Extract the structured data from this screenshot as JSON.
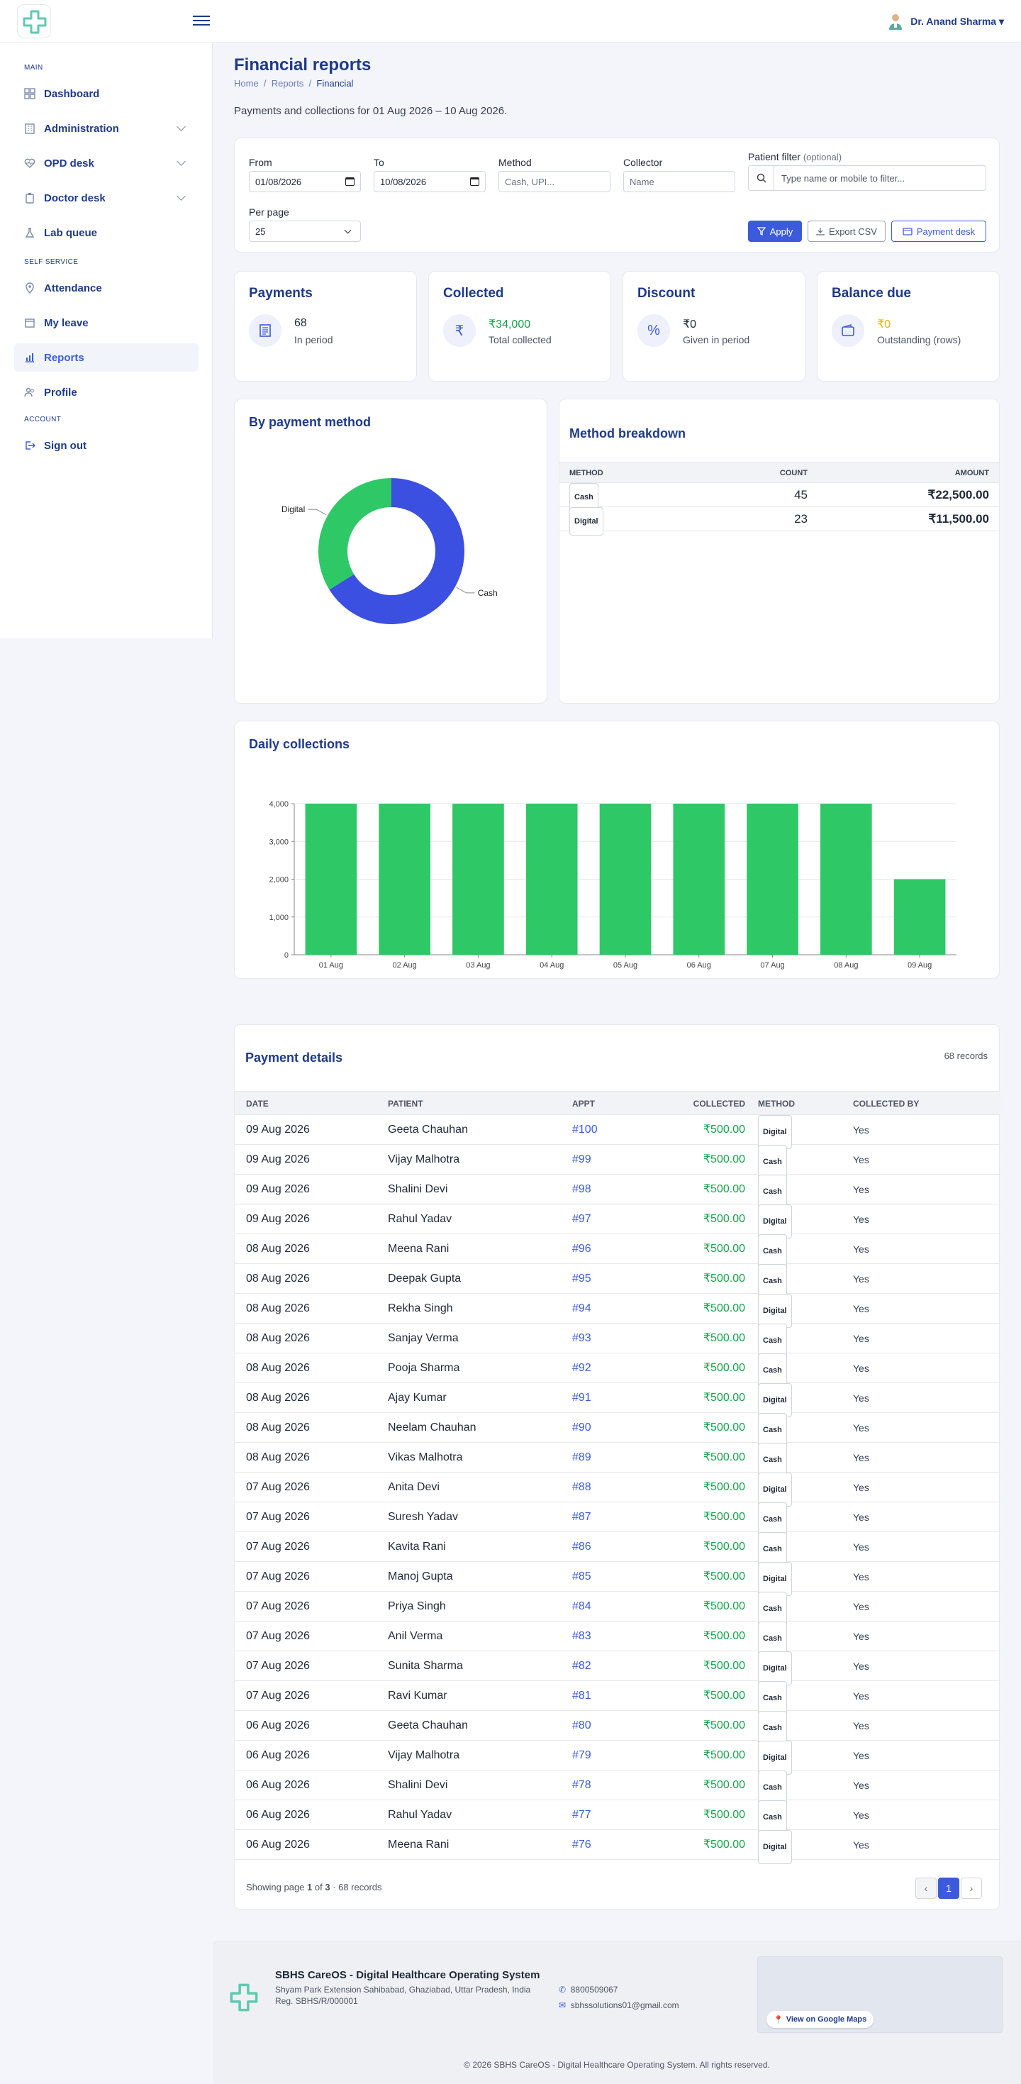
{
  "topbar": {
    "user_name": "Dr. Anand Sharma ▾"
  },
  "sidebar": {
    "main_section": "MAIN",
    "self_section": "SELF SERVICE",
    "account_section": "ACCOUNT",
    "items": [
      {
        "label": "Dashboard",
        "icon": "grid-icon"
      },
      {
        "label": "Administration",
        "icon": "building-icon"
      },
      {
        "label": "OPD desk",
        "icon": "heart-pulse-icon"
      },
      {
        "label": "Doctor desk",
        "icon": "clipboard-icon"
      },
      {
        "label": "Lab queue",
        "icon": "flask-icon"
      },
      {
        "label": "Attendance",
        "icon": "location-pin-icon"
      },
      {
        "label": "My leave",
        "icon": "calendar-icon"
      },
      {
        "label": "Reports",
        "icon": "bar-chart-icon"
      },
      {
        "label": "Profile",
        "icon": "users-icon"
      },
      {
        "label": "Sign out",
        "icon": "sign-out-icon"
      }
    ]
  },
  "page": {
    "title": "Financial reports",
    "breadcrumb": [
      "Home",
      "/",
      "Reports",
      "/",
      "Financial"
    ],
    "subtitle": "Payments and collections for 01 Aug 2026 – 10 Aug 2026."
  },
  "filters": {
    "from_label": "From",
    "from_value": "01/08/2026",
    "to_label": "To",
    "to_value": "10/08/2026",
    "method_label": "Method",
    "method_placeholder": "Cash, UPI...",
    "collector_label": "Collector",
    "collector_placeholder": "Name",
    "patient_label": "Patient filter",
    "patient_optional": "(optional)",
    "patient_placeholder": "Type name or mobile to filter...",
    "perpage_label": "Per page",
    "perpage_value": "25",
    "apply": "Apply",
    "export": "Export CSV",
    "payment_desk": "Payment desk"
  },
  "kpis": [
    {
      "title": "Payments",
      "value": "68",
      "sub": "In period",
      "icon": "receipt-icon",
      "color": "#1f2937"
    },
    {
      "title": "Collected",
      "value": "₹34,000",
      "sub": "Total collected",
      "icon": "rupee-icon",
      "color": "#16a34a"
    },
    {
      "title": "Discount",
      "value": "₹0",
      "sub": "Given in period",
      "icon": "percent-icon",
      "color": "#1f2937"
    },
    {
      "title": "Balance due",
      "value": "₹0",
      "sub": "Outstanding (rows)",
      "icon": "wallet-icon",
      "color": "#eab308"
    }
  ],
  "method_chart": {
    "title": "By payment method",
    "chart_data": {
      "type": "pie",
      "labels": [
        "Cash",
        "Digital"
      ],
      "values": [
        22500,
        11500
      ],
      "colors": [
        "#3b4fe0",
        "#2ec866"
      ]
    }
  },
  "method_breakdown": {
    "title": "Method breakdown",
    "headers": [
      "METHOD",
      "COUNT",
      "AMOUNT"
    ],
    "rows": [
      {
        "method": "Cash",
        "count": "45",
        "amount": "₹22,500.00"
      },
      {
        "method": "Digital",
        "count": "23",
        "amount": "₹11,500.00"
      }
    ]
  },
  "daily": {
    "title": "Daily collections",
    "chart_data": {
      "type": "bar",
      "categories": [
        "01 Aug",
        "02 Aug",
        "03 Aug",
        "04 Aug",
        "05 Aug",
        "06 Aug",
        "07 Aug",
        "08 Aug",
        "09 Aug"
      ],
      "values": [
        4000,
        4000,
        4000,
        4000,
        4000,
        4000,
        4000,
        4000,
        2000
      ],
      "ylim": [
        0,
        4000
      ],
      "yticks": [
        "0",
        "1,000",
        "2,000",
        "3,000",
        "4,000"
      ],
      "color": "#2ec866"
    }
  },
  "details": {
    "title": "Payment details",
    "count": "68 records",
    "headers": [
      "DATE",
      "PATIENT",
      "APPT",
      "COLLECTED",
      "METHOD",
      "COLLECTED BY"
    ],
    "rows": [
      {
        "date": "09 Aug 2026",
        "patient": "Geeta Chauhan",
        "appt": "#100",
        "amount": "₹500.00",
        "method": "Digital",
        "by": "Yes"
      },
      {
        "date": "09 Aug 2026",
        "patient": "Vijay Malhotra",
        "appt": "#99",
        "amount": "₹500.00",
        "method": "Cash",
        "by": "Yes"
      },
      {
        "date": "09 Aug 2026",
        "patient": "Shalini Devi",
        "appt": "#98",
        "amount": "₹500.00",
        "method": "Cash",
        "by": "Yes"
      },
      {
        "date": "09 Aug 2026",
        "patient": "Rahul Yadav",
        "appt": "#97",
        "amount": "₹500.00",
        "method": "Digital",
        "by": "Yes"
      },
      {
        "date": "08 Aug 2026",
        "patient": "Meena Rani",
        "appt": "#96",
        "amount": "₹500.00",
        "method": "Cash",
        "by": "Yes"
      },
      {
        "date": "08 Aug 2026",
        "patient": "Deepak Gupta",
        "appt": "#95",
        "amount": "₹500.00",
        "method": "Cash",
        "by": "Yes"
      },
      {
        "date": "08 Aug 2026",
        "patient": "Rekha Singh",
        "appt": "#94",
        "amount": "₹500.00",
        "method": "Digital",
        "by": "Yes"
      },
      {
        "date": "08 Aug 2026",
        "patient": "Sanjay Verma",
        "appt": "#93",
        "amount": "₹500.00",
        "method": "Cash",
        "by": "Yes"
      },
      {
        "date": "08 Aug 2026",
        "patient": "Pooja Sharma",
        "appt": "#92",
        "amount": "₹500.00",
        "method": "Cash",
        "by": "Yes"
      },
      {
        "date": "08 Aug 2026",
        "patient": "Ajay Kumar",
        "appt": "#91",
        "amount": "₹500.00",
        "method": "Digital",
        "by": "Yes"
      },
      {
        "date": "08 Aug 2026",
        "patient": "Neelam Chauhan",
        "appt": "#90",
        "amount": "₹500.00",
        "method": "Cash",
        "by": "Yes"
      },
      {
        "date": "08 Aug 2026",
        "patient": "Vikas Malhotra",
        "appt": "#89",
        "amount": "₹500.00",
        "method": "Cash",
        "by": "Yes"
      },
      {
        "date": "07 Aug 2026",
        "patient": "Anita Devi",
        "appt": "#88",
        "amount": "₹500.00",
        "method": "Digital",
        "by": "Yes"
      },
      {
        "date": "07 Aug 2026",
        "patient": "Suresh Yadav",
        "appt": "#87",
        "amount": "₹500.00",
        "method": "Cash",
        "by": "Yes"
      },
      {
        "date": "07 Aug 2026",
        "patient": "Kavita Rani",
        "appt": "#86",
        "amount": "₹500.00",
        "method": "Cash",
        "by": "Yes"
      },
      {
        "date": "07 Aug 2026",
        "patient": "Manoj Gupta",
        "appt": "#85",
        "amount": "₹500.00",
        "method": "Digital",
        "by": "Yes"
      },
      {
        "date": "07 Aug 2026",
        "patient": "Priya Singh",
        "appt": "#84",
        "amount": "₹500.00",
        "method": "Cash",
        "by": "Yes"
      },
      {
        "date": "07 Aug 2026",
        "patient": "Anil Verma",
        "appt": "#83",
        "amount": "₹500.00",
        "method": "Cash",
        "by": "Yes"
      },
      {
        "date": "07 Aug 2026",
        "patient": "Sunita Sharma",
        "appt": "#82",
        "amount": "₹500.00",
        "method": "Digital",
        "by": "Yes"
      },
      {
        "date": "07 Aug 2026",
        "patient": "Ravi Kumar",
        "appt": "#81",
        "amount": "₹500.00",
        "method": "Cash",
        "by": "Yes"
      },
      {
        "date": "06 Aug 2026",
        "patient": "Geeta Chauhan",
        "appt": "#80",
        "amount": "₹500.00",
        "method": "Cash",
        "by": "Yes"
      },
      {
        "date": "06 Aug 2026",
        "patient": "Vijay Malhotra",
        "appt": "#79",
        "amount": "₹500.00",
        "method": "Digital",
        "by": "Yes"
      },
      {
        "date": "06 Aug 2026",
        "patient": "Shalini Devi",
        "appt": "#78",
        "amount": "₹500.00",
        "method": "Cash",
        "by": "Yes"
      },
      {
        "date": "06 Aug 2026",
        "patient": "Rahul Yadav",
        "appt": "#77",
        "amount": "₹500.00",
        "method": "Cash",
        "by": "Yes"
      },
      {
        "date": "06 Aug 2026",
        "patient": "Meena Rani",
        "appt": "#76",
        "amount": "₹500.00",
        "method": "Digital",
        "by": "Yes"
      }
    ],
    "showing_prefix": "Showing page ",
    "page": "1",
    "of": " of ",
    "pages": "3",
    "suffix": " · 68 records",
    "current_page": "1",
    "prev": "‹",
    "next": "›"
  },
  "footer": {
    "name": "SBHS CareOS - Digital Healthcare Operating System",
    "address": "Shyam Park Extension Sahibabad, Ghaziabad, Uttar Pradesh, India",
    "reg": "Reg. SBHS/R/000001",
    "phone": "8800509067",
    "email": "sbhssolutions01@gmail.com",
    "map_button": "View on Google Maps",
    "copyright": "© 2026 SBHS CareOS - Digital Healthcare Operating System. All rights reserved."
  }
}
